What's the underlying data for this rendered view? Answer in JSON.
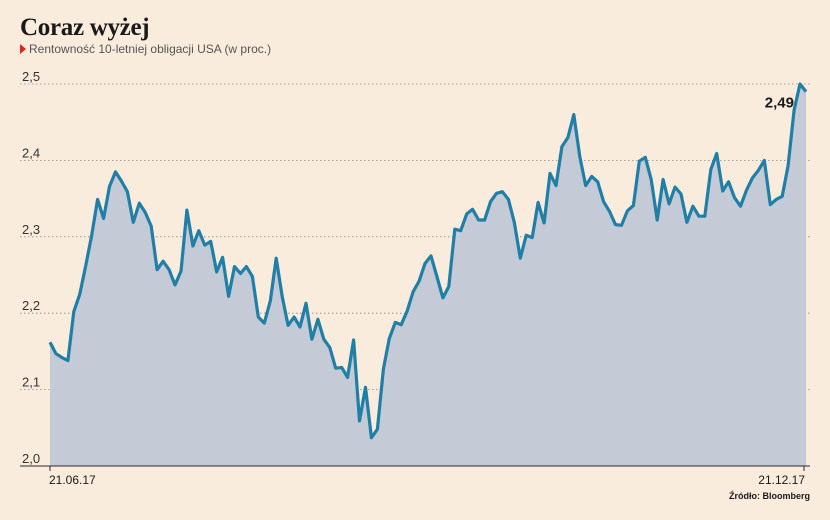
{
  "title": "Coraz wyżej",
  "subtitle": "Rentowność 10-letniej obligacji USA (w proc.)",
  "source": "Źródło: Bloomberg",
  "colors": {
    "line": "#1f7fa6",
    "area": "#c4cad6",
    "marker": "#e2231a",
    "background": "#f9ecdd"
  },
  "chart_data": {
    "type": "area",
    "title": "Coraz wyżej",
    "subtitle": "Rentowność 10-letniej obligacji USA (w proc.)",
    "xlabel": "",
    "ylabel": "",
    "ylim": [
      2.0,
      2.5
    ],
    "yticks": [
      "2,0",
      "2,1",
      "2,2",
      "2,3",
      "2,4",
      "2,5"
    ],
    "ytick_values": [
      2.0,
      2.1,
      2.2,
      2.3,
      2.4,
      2.5
    ],
    "xtick_labels": [
      "21.06.17",
      "21.12.17"
    ],
    "grid": "horizontal-dotted",
    "end_label": "2,49",
    "series": [
      {
        "values": [
          2.162,
          2.147,
          2.142,
          2.138,
          2.202,
          2.225,
          2.262,
          2.302,
          2.349,
          2.324,
          2.366,
          2.385,
          2.373,
          2.359,
          2.319,
          2.344,
          2.332,
          2.314,
          2.257,
          2.268,
          2.257,
          2.237,
          2.255,
          2.335,
          2.288,
          2.308,
          2.289,
          2.294,
          2.254,
          2.273,
          2.222,
          2.261,
          2.252,
          2.261,
          2.248,
          2.195,
          2.187,
          2.216,
          2.272,
          2.222,
          2.184,
          2.195,
          2.182,
          2.213,
          2.166,
          2.192,
          2.166,
          2.155,
          2.128,
          2.129,
          2.116,
          2.165,
          2.059,
          2.103,
          2.037,
          2.048,
          2.127,
          2.167,
          2.188,
          2.185,
          2.203,
          2.228,
          2.242,
          2.265,
          2.275,
          2.248,
          2.22,
          2.235,
          2.31,
          2.308,
          2.33,
          2.336,
          2.322,
          2.322,
          2.346,
          2.357,
          2.359,
          2.349,
          2.319,
          2.272,
          2.302,
          2.299,
          2.345,
          2.318,
          2.383,
          2.367,
          2.418,
          2.43,
          2.46,
          2.405,
          2.367,
          2.379,
          2.372,
          2.346,
          2.333,
          2.316,
          2.315,
          2.334,
          2.341,
          2.399,
          2.404,
          2.375,
          2.322,
          2.375,
          2.343,
          2.365,
          2.356,
          2.319,
          2.34,
          2.327,
          2.327,
          2.388,
          2.409,
          2.36,
          2.372,
          2.351,
          2.34,
          2.361,
          2.377,
          2.387,
          2.4,
          2.342,
          2.349,
          2.353,
          2.393,
          2.466,
          2.5,
          2.49
        ]
      }
    ]
  }
}
